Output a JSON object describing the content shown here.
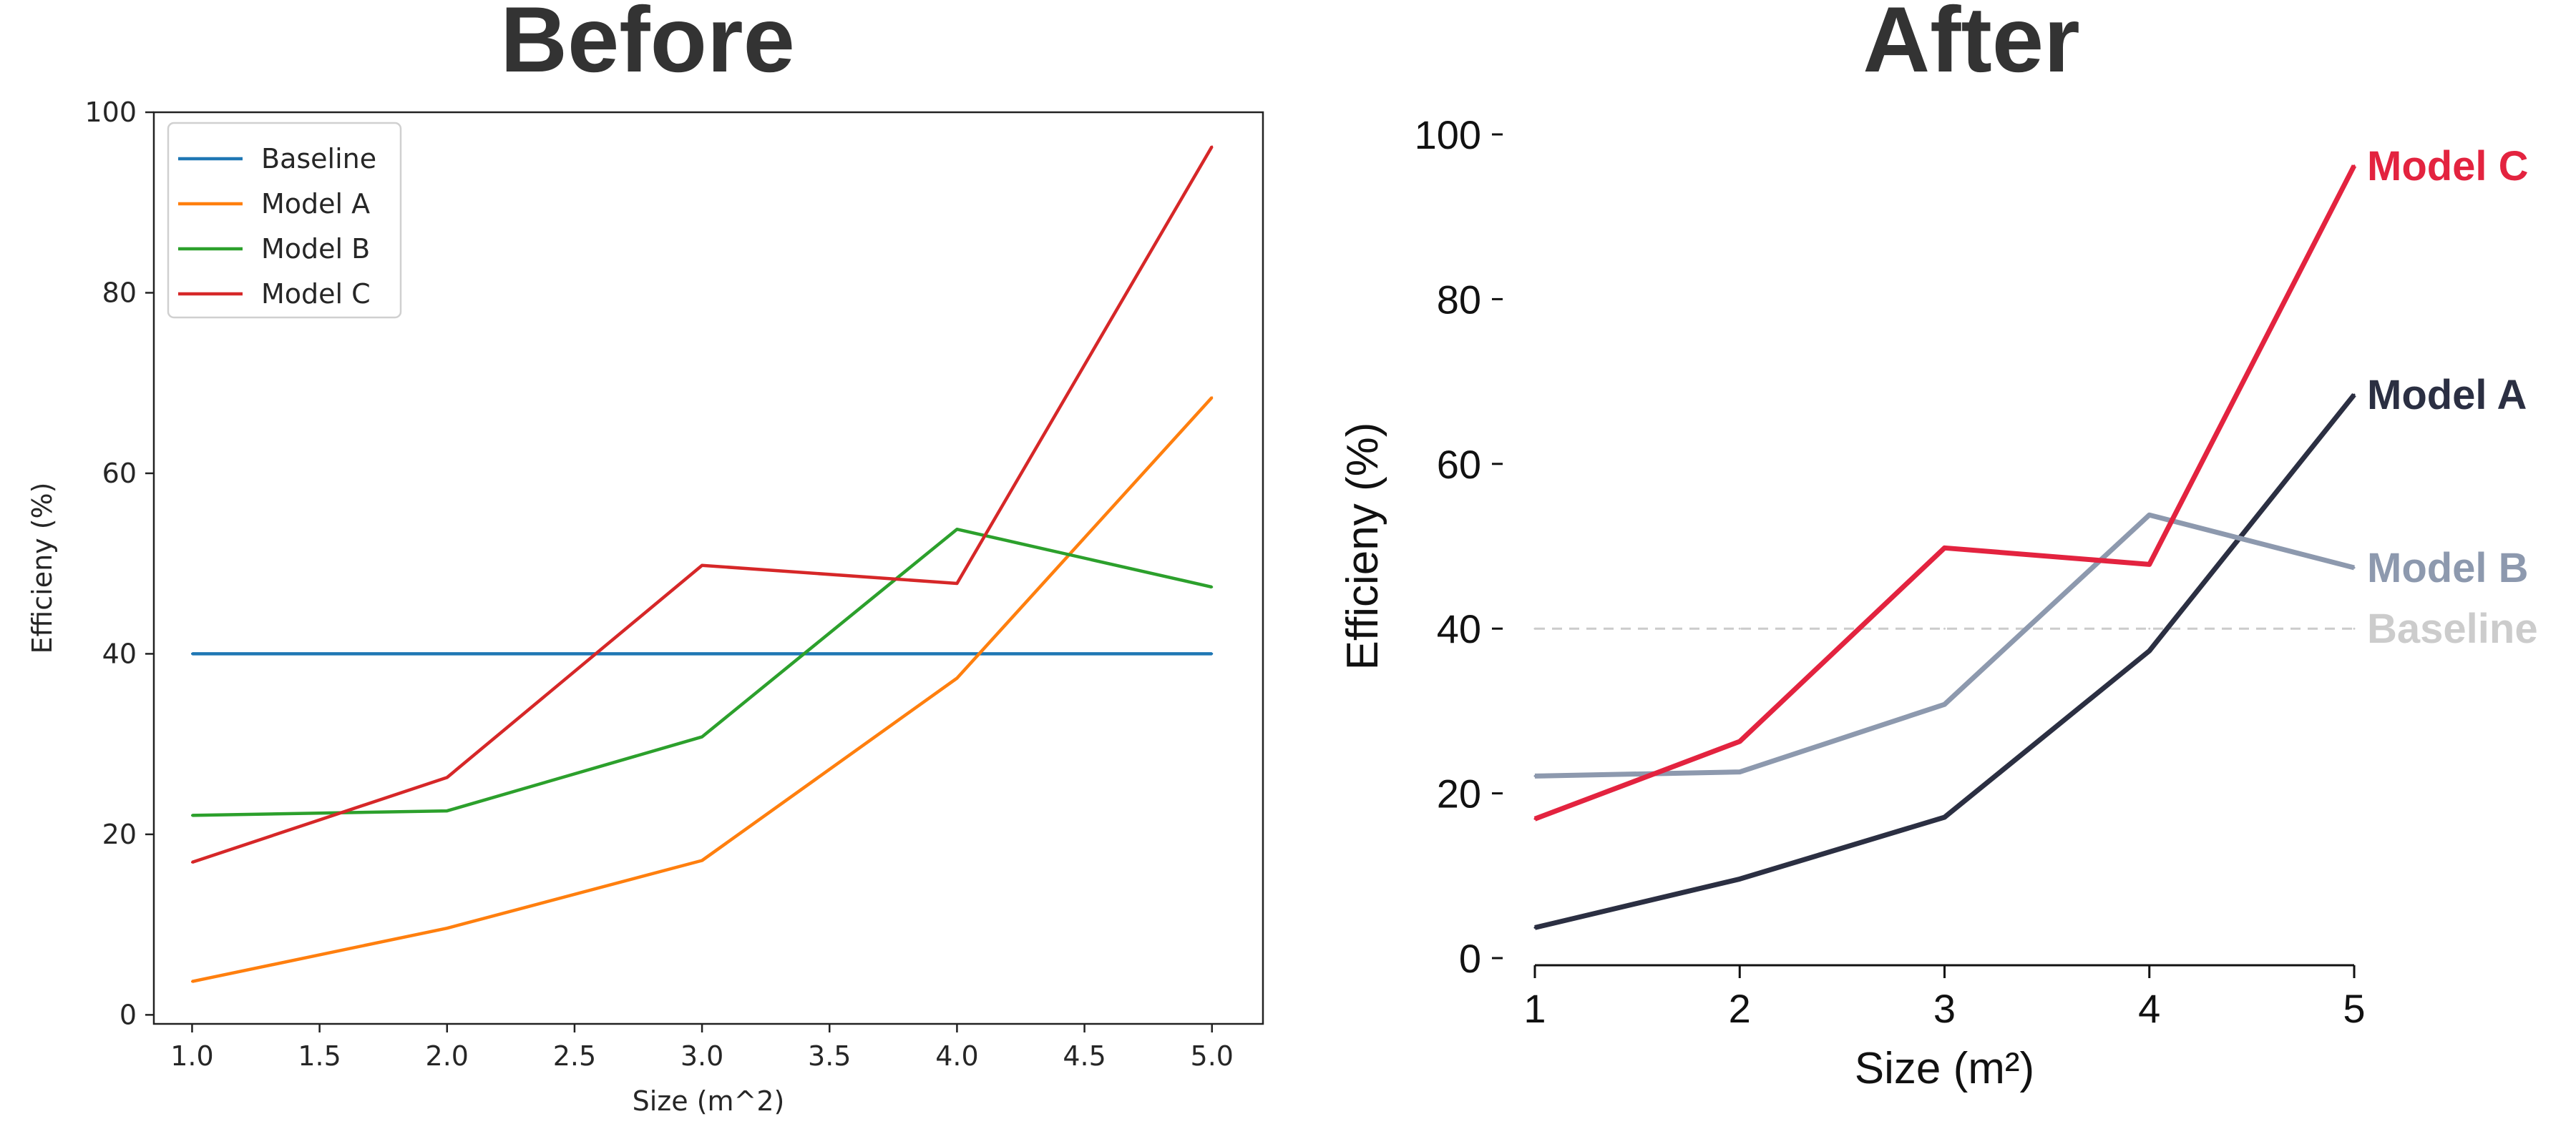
{
  "chart_data": [
    {
      "type": "line",
      "title": "Before",
      "xlabel": "Size (m^2)",
      "ylabel": "Efficieny (%)",
      "xlim": [
        0.85,
        5.2
      ],
      "ylim": [
        -1,
        100
      ],
      "xticks": [
        1.0,
        1.5,
        2.0,
        2.5,
        3.0,
        3.5,
        4.0,
        4.5,
        5.0
      ],
      "xtick_labels": [
        "1.0",
        "1.5",
        "2.0",
        "2.5",
        "3.0",
        "3.5",
        "4.0",
        "4.5",
        "5.0"
      ],
      "yticks": [
        0,
        20,
        40,
        60,
        80,
        100
      ],
      "ytick_labels": [
        "0",
        "20",
        "40",
        "60",
        "80",
        "100"
      ],
      "legend": "top-left",
      "grid": false,
      "x": [
        1,
        2,
        3,
        4,
        5
      ],
      "series": [
        {
          "name": "Baseline",
          "color": "#1f77b4",
          "values": [
            40,
            40,
            40,
            40,
            40
          ]
        },
        {
          "name": "Model A",
          "color": "#ff7f0e",
          "values": [
            3.7,
            9.6,
            17.1,
            37.3,
            68.4
          ]
        },
        {
          "name": "Model B",
          "color": "#2ca02c",
          "values": [
            22.1,
            22.6,
            30.8,
            53.8,
            47.4
          ]
        },
        {
          "name": "Model C",
          "color": "#d62728",
          "values": [
            16.9,
            26.3,
            49.8,
            47.8,
            96.2
          ]
        }
      ]
    },
    {
      "type": "line",
      "title": "After",
      "xlabel": "Size (m²)",
      "ylabel": "Efficieny (%)",
      "xlim": [
        1,
        5
      ],
      "ylim": [
        0,
        100
      ],
      "xticks": [
        1,
        2,
        3,
        4,
        5
      ],
      "xtick_labels": [
        "1",
        "2",
        "3",
        "4",
        "5"
      ],
      "yticks": [
        0,
        20,
        40,
        60,
        80,
        100
      ],
      "ytick_labels": [
        "0",
        "20",
        "40",
        "60",
        "80",
        "100"
      ],
      "legend": "direct labels at right end of lines",
      "grid": false,
      "x": [
        1,
        2,
        3,
        4,
        5
      ],
      "series": [
        {
          "name": "Baseline",
          "color": "#cccccc",
          "dashed": true,
          "values": [
            40,
            40,
            40,
            40,
            40
          ]
        },
        {
          "name": "Model A",
          "color": "#2b2f42",
          "values": [
            3.7,
            9.6,
            17.1,
            37.3,
            68.4
          ]
        },
        {
          "name": "Model B",
          "color": "#8d99ae",
          "values": [
            22.1,
            22.6,
            30.8,
            53.8,
            47.4
          ]
        },
        {
          "name": "Model C",
          "color": "#e3233f",
          "values": [
            16.9,
            26.3,
            49.8,
            47.8,
            96.2
          ]
        }
      ]
    }
  ]
}
